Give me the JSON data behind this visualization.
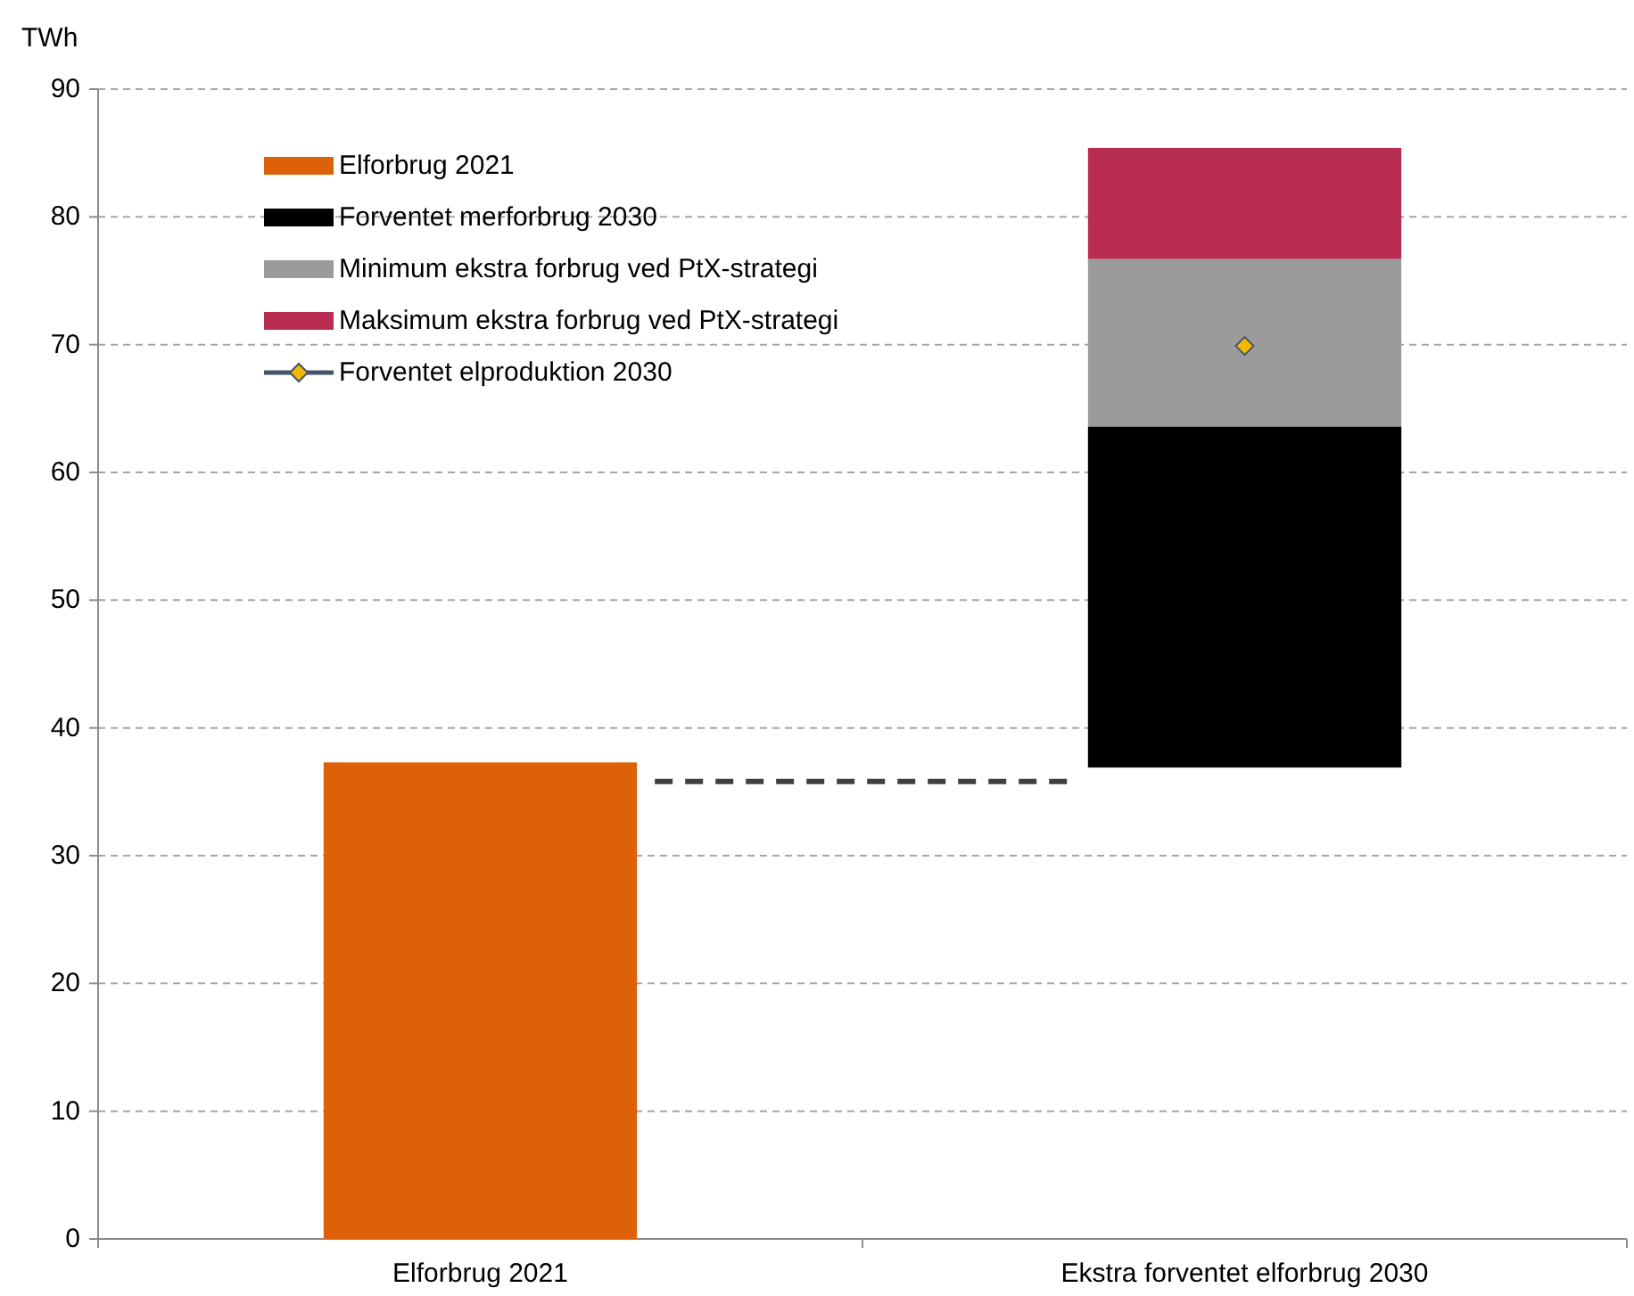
{
  "chart_data": {
    "type": "bar",
    "ylabel": "TWh",
    "categories": [
      "Elforbrug 2021",
      "Ekstra forventet elforbrug 2030"
    ],
    "series": [
      {
        "name": "Elforbrug 2021",
        "color": "#dd6108",
        "values": [
          37.3,
          null
        ]
      },
      {
        "name": "Forventet merforbrug 2030",
        "color": "#000000",
        "base": [
          null,
          36.9
        ],
        "values": [
          null,
          26.7
        ]
      },
      {
        "name": "Minimum ekstra forbrug ved PtX-strategi",
        "color": "#9b9b9b",
        "base": [
          null,
          63.6
        ],
        "values": [
          null,
          13.1
        ]
      },
      {
        "name": "Maksimum ekstra forbrug ved PtX-strategi",
        "color": "#b92d52",
        "base": [
          null,
          76.7
        ],
        "values": [
          null,
          8.7
        ]
      },
      {
        "name": "Forventet elproduktion 2030",
        "type": "line",
        "color": "#44546a",
        "marker": "diamond",
        "values": [
          null,
          69.9
        ]
      }
    ],
    "ref_lines": [
      {
        "axis": "y",
        "value": 35.8,
        "color": "#404040",
        "line_style": "dashed"
      }
    ],
    "ylim": [
      0,
      90
    ],
    "yticks": [
      0,
      10,
      20,
      30,
      40,
      50,
      60,
      70,
      80,
      90
    ],
    "grid": "y",
    "legend": "top left"
  }
}
